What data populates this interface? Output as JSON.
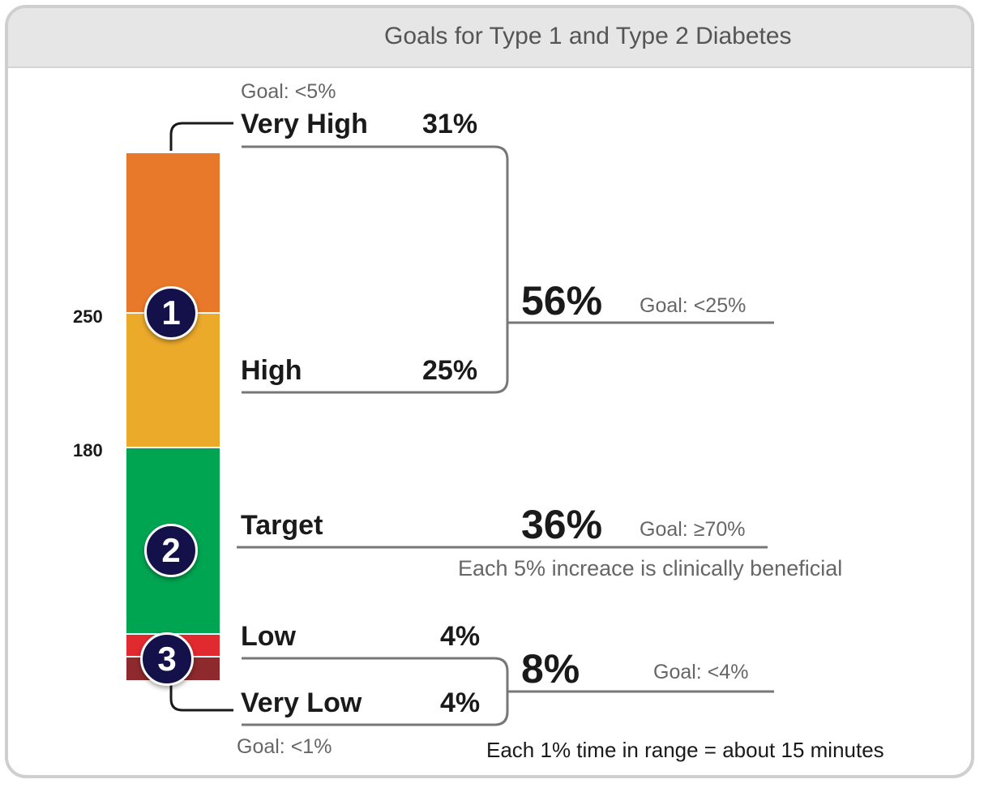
{
  "header": {
    "title": "Goals for Type 1 and Type 2 Diabetes"
  },
  "chart_data": {
    "type": "bar",
    "orientation": "stacked-vertical",
    "title": "Goals for Type 1 and Type 2 Diabetes",
    "thresholds": [
      "250",
      "180"
    ],
    "bands": [
      {
        "key": "very_high",
        "label": "Very High",
        "value": 31,
        "value_label": "31%",
        "goal": "Goal: <5%",
        "color": "#e8792a"
      },
      {
        "key": "high",
        "label": "High",
        "value": 25,
        "value_label": "25%",
        "color": "#ecaa2b"
      },
      {
        "key": "target",
        "label": "Target",
        "value": 36,
        "value_label": "36%",
        "goal": "Goal: ≥70%",
        "note": "Each 5% increace is clinically beneficial",
        "color": "#00a551"
      },
      {
        "key": "low",
        "label": "Low",
        "value": 4,
        "value_label": "4%",
        "color": "#e02a2f"
      },
      {
        "key": "very_low",
        "label": "Very Low",
        "value": 4,
        "value_label": "4%",
        "goal": "Goal: <1%",
        "color": "#8e2a2e"
      }
    ],
    "groups": [
      {
        "key": "high_total",
        "value": 56,
        "value_label": "56%",
        "goal": "Goal: <25%"
      },
      {
        "key": "low_total",
        "value": 8,
        "value_label": "8%",
        "goal": "Goal: <4%"
      }
    ],
    "badges": [
      "1",
      "2",
      "3"
    ]
  },
  "footnote": "Each 1% time in range = about 15 minutes"
}
